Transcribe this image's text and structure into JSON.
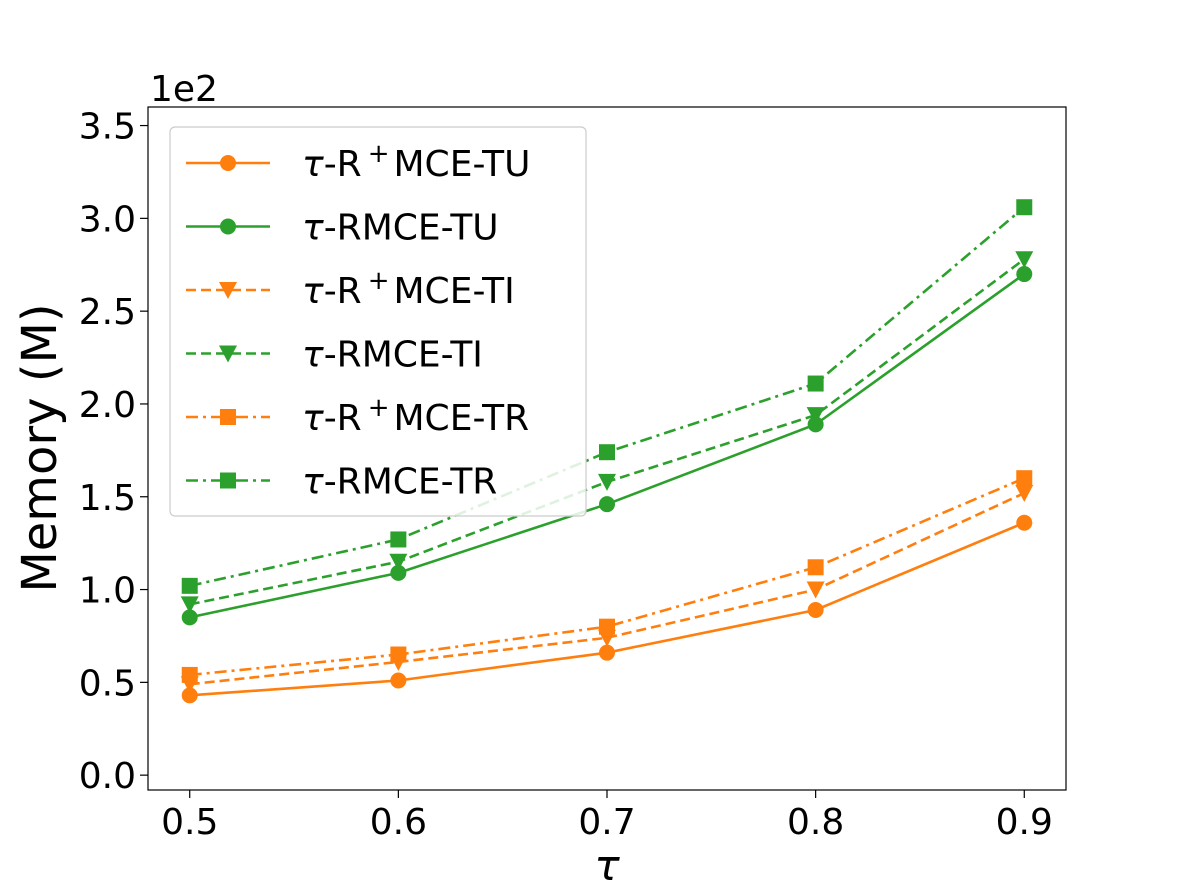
{
  "chart_data": {
    "type": "line",
    "title": "",
    "xlabel": "τ",
    "ylabel": "Memory (M)",
    "y_offset_label": "1e2",
    "x": [
      0.5,
      0.6,
      0.7,
      0.8,
      0.9
    ],
    "x_tick_labels": [
      "0.5",
      "0.6",
      "0.7",
      "0.8",
      "0.9"
    ],
    "y_ticks": [
      0.0,
      0.5,
      1.0,
      1.5,
      2.0,
      2.5,
      3.0,
      3.5
    ],
    "y_tick_labels": [
      "0.0",
      "0.5",
      "1.0",
      "1.5",
      "2.0",
      "2.5",
      "3.0",
      "3.5"
    ],
    "xlim": [
      0.48,
      0.92
    ],
    "ylim": [
      -0.08,
      3.6
    ],
    "grid": false,
    "legend_position": "upper-left",
    "colors": {
      "orange": "#ff7f0e",
      "green": "#2ca02c"
    },
    "series": [
      {
        "name": "τ-R⁺MCE-TU",
        "tau": "τ",
        "label_rest": "-R",
        "sup": "+",
        "suffix": "MCE-TU",
        "color": "#ff7f0e",
        "dash": "solid",
        "marker": "circle",
        "values": [
          0.43,
          0.51,
          0.66,
          0.89,
          1.36
        ]
      },
      {
        "name": "τ-RMCE-TU",
        "tau": "τ",
        "label_rest": "-RMCE-TU",
        "sup": "",
        "suffix": "",
        "color": "#2ca02c",
        "dash": "solid",
        "marker": "circle",
        "values": [
          0.85,
          1.09,
          1.46,
          1.89,
          2.7
        ]
      },
      {
        "name": "τ-R⁺MCE-TI",
        "tau": "τ",
        "label_rest": "-R",
        "sup": "+",
        "suffix": "MCE-TI",
        "color": "#ff7f0e",
        "dash": "dashed",
        "marker": "triangle-down",
        "values": [
          0.49,
          0.61,
          0.74,
          1.0,
          1.52
        ]
      },
      {
        "name": "τ-RMCE-TI",
        "tau": "τ",
        "label_rest": "-RMCE-TI",
        "sup": "",
        "suffix": "",
        "color": "#2ca02c",
        "dash": "dashed",
        "marker": "triangle-down",
        "values": [
          0.92,
          1.15,
          1.58,
          1.94,
          2.78
        ]
      },
      {
        "name": "τ-R⁺MCE-TR",
        "tau": "τ",
        "label_rest": "-R",
        "sup": "+",
        "suffix": "MCE-TR",
        "color": "#ff7f0e",
        "dash": "dashdot",
        "marker": "square",
        "values": [
          0.54,
          0.65,
          0.8,
          1.12,
          1.6
        ]
      },
      {
        "name": "τ-RMCE-TR",
        "tau": "τ",
        "label_rest": "-RMCE-TR",
        "sup": "",
        "suffix": "",
        "color": "#2ca02c",
        "dash": "dashdot",
        "marker": "square",
        "values": [
          1.02,
          1.27,
          1.74,
          2.11,
          3.06
        ]
      }
    ]
  }
}
